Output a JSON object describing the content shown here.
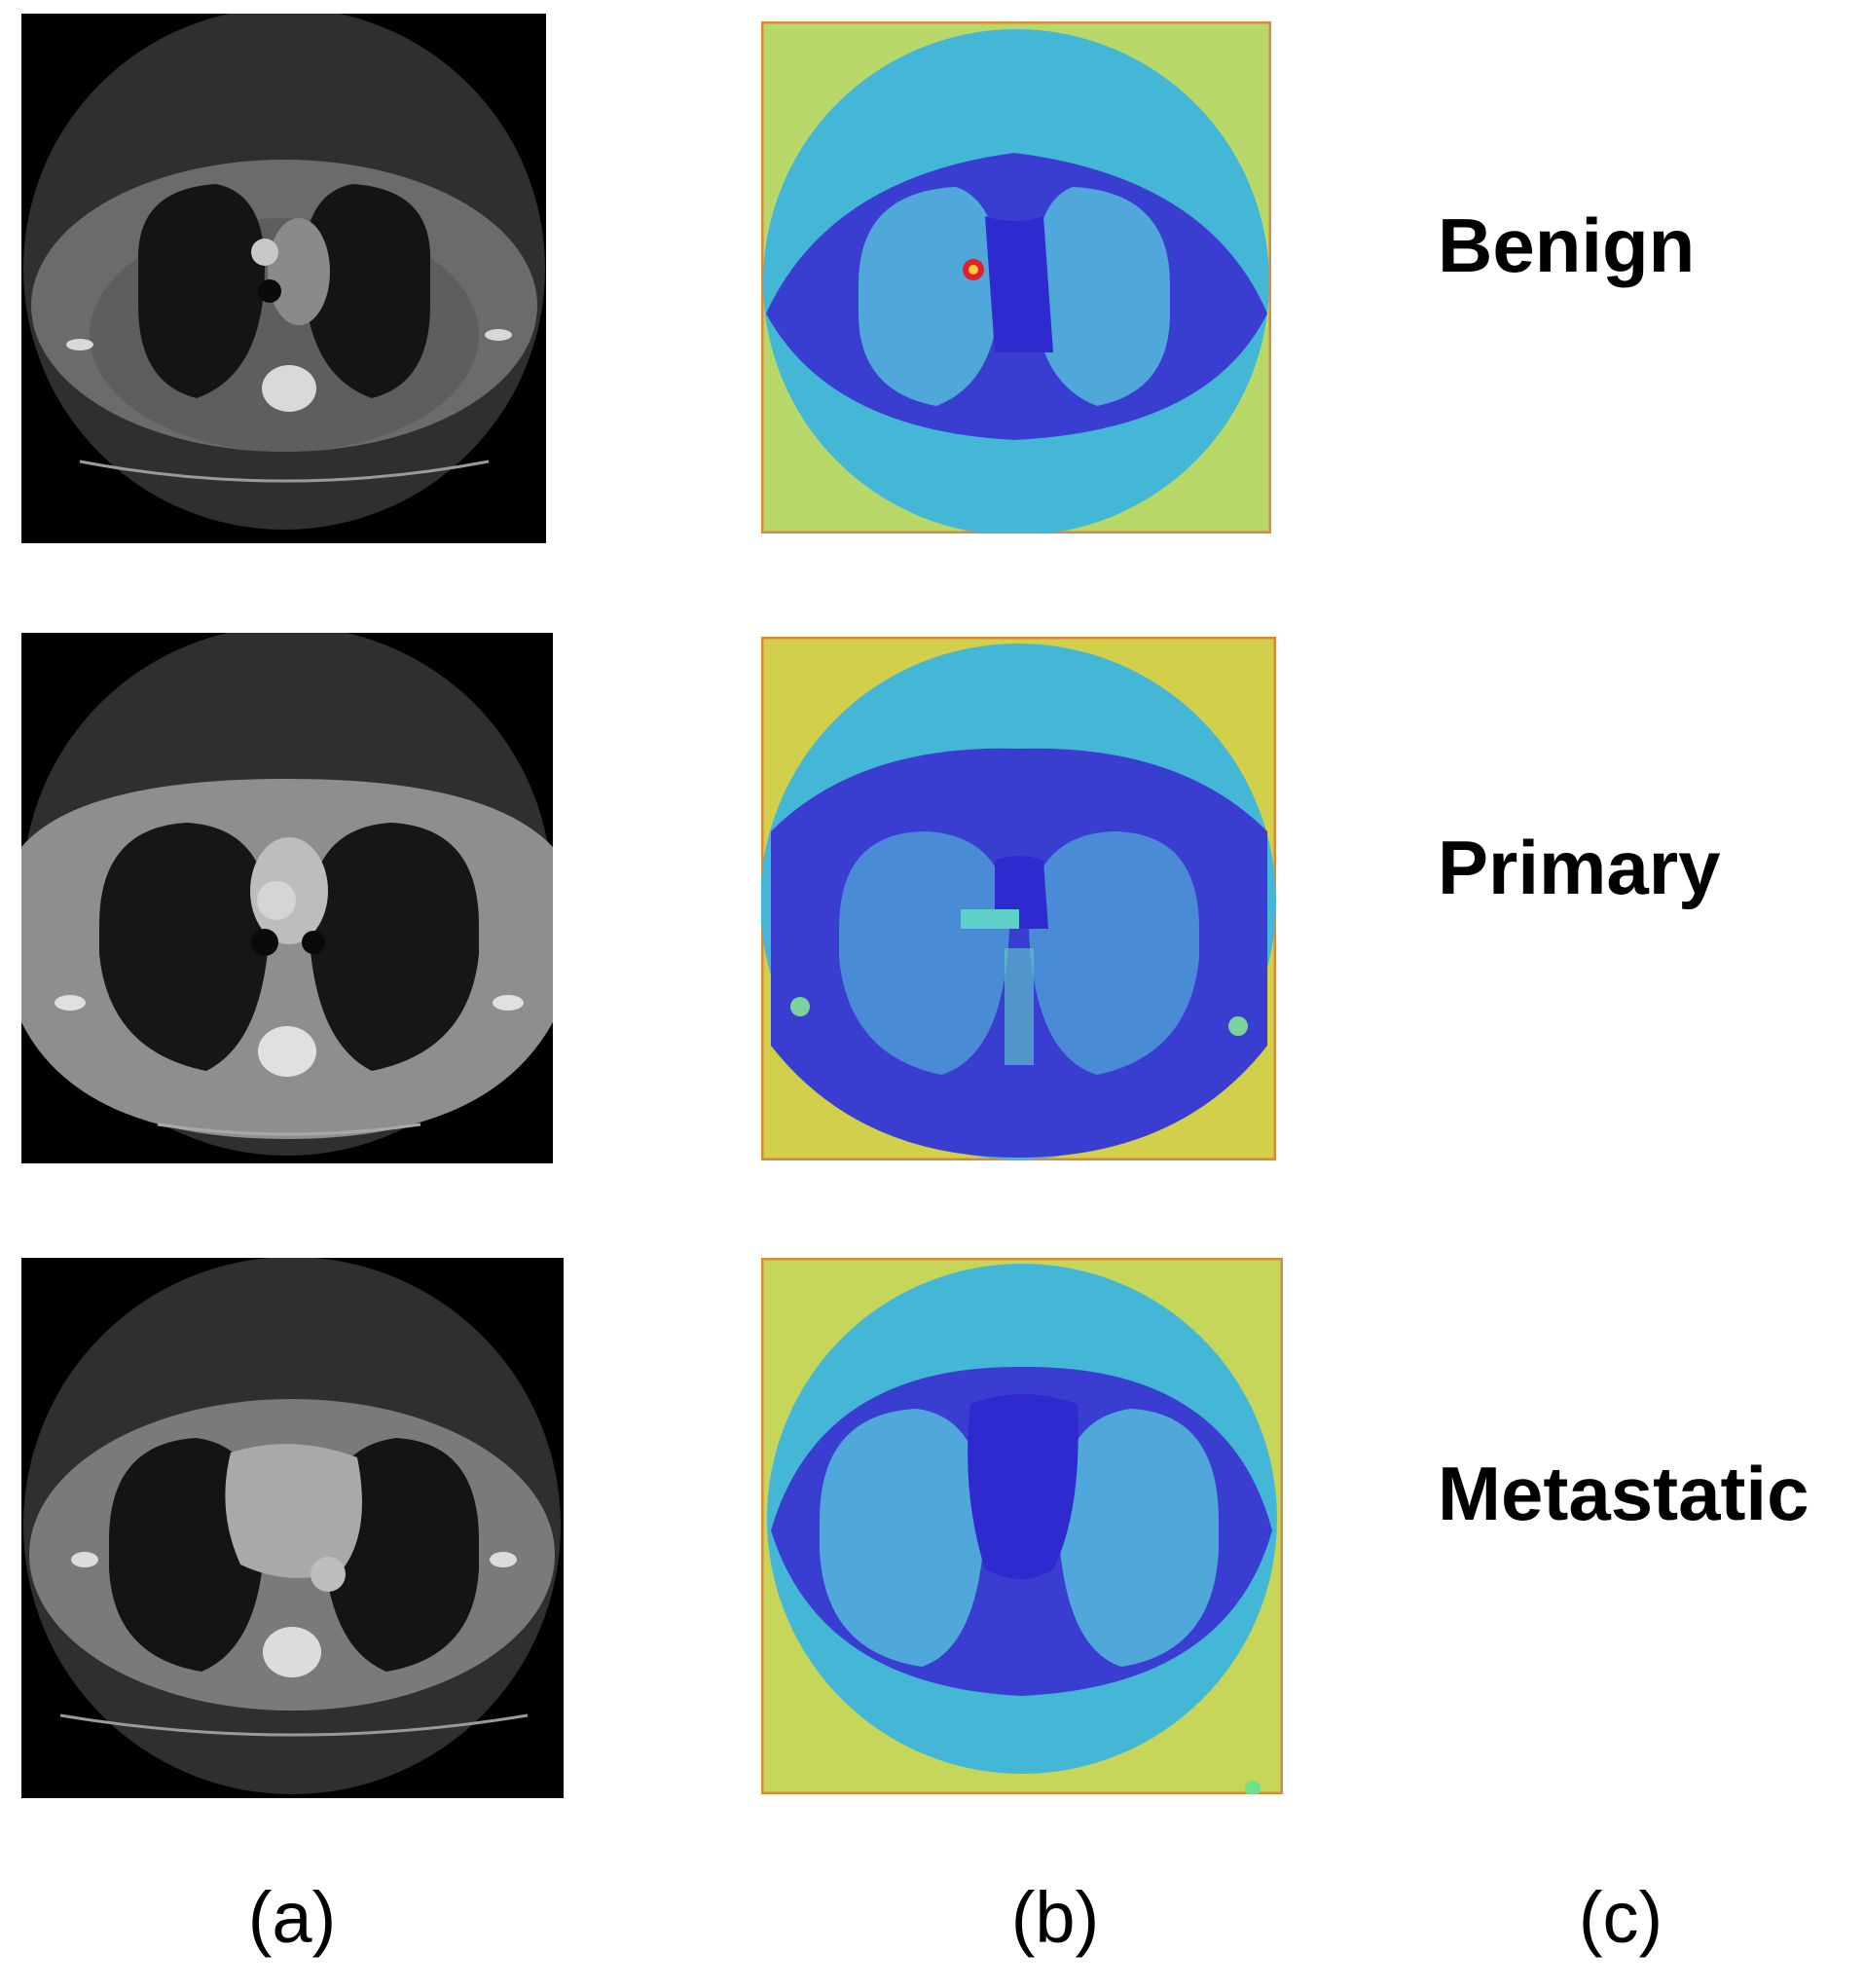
{
  "rows": [
    {
      "label": "Benign"
    },
    {
      "label": "Primary"
    },
    {
      "label": "Metastatic"
    }
  ],
  "columns": [
    {
      "label": "(a)"
    },
    {
      "label": "(b)"
    },
    {
      "label": "(c)"
    }
  ],
  "colors": {
    "ct_background": "#000000",
    "ct_body": "#6b6b6b",
    "ct_lung": "#141414",
    "ct_bone": "#d9d9d9",
    "heat_outer": "#b9d86a",
    "heat_circle": "#45b7d6",
    "heat_body": "#3a3ed0",
    "heat_lung": "#4fa8d9",
    "heat_hot": "#e0202a"
  }
}
